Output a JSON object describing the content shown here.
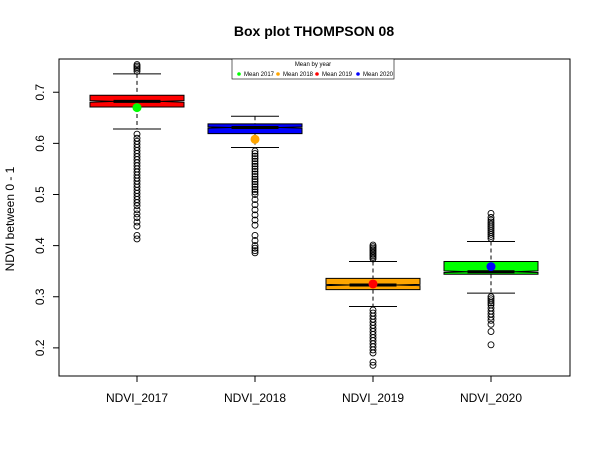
{
  "chart_data": {
    "type": "box",
    "title": "Box plot THOMPSON 08",
    "xlabel": "",
    "ylabel": "NDVI between 0 - 1",
    "ylim": [
      0.145,
      0.765
    ],
    "yticks": [
      0.2,
      0.3,
      0.4,
      0.5,
      0.6,
      0.7
    ],
    "grid": false,
    "legend": {
      "title": "Mean by year",
      "placement": "top-center",
      "entries": [
        {
          "label": "Mean 2017",
          "color": "#00ff00"
        },
        {
          "label": "Mean 2018",
          "color": "#ffa500"
        },
        {
          "label": "Mean 2019",
          "color": "#ff0000"
        },
        {
          "label": "Mean 2020",
          "color": "#0000ff"
        }
      ]
    },
    "categories": [
      "NDVI_2017",
      "NDVI_2018",
      "NDVI_2019",
      "NDVI_2020"
    ],
    "boxes": [
      {
        "name": "NDVI_2017",
        "fill": "#ff0000",
        "whisker_low": 0.628,
        "q1": 0.671,
        "median": 0.682,
        "q3": 0.694,
        "whisker_high": 0.736,
        "notch": 0.0015,
        "mean": 0.67,
        "mean_color": "#00ff00",
        "outliers": [
          0.741,
          0.745,
          0.748,
          0.751,
          0.754,
          0.618,
          0.61,
          0.604,
          0.598,
          0.592,
          0.586,
          0.58,
          0.574,
          0.568,
          0.562,
          0.556,
          0.55,
          0.544,
          0.538,
          0.532,
          0.526,
          0.52,
          0.514,
          0.508,
          0.502,
          0.496,
          0.49,
          0.484,
          0.478,
          0.47,
          0.462,
          0.455,
          0.446,
          0.438,
          0.42,
          0.413
        ]
      },
      {
        "name": "NDVI_2018",
        "fill": "#0000ff",
        "whisker_low": 0.592,
        "q1": 0.619,
        "median": 0.631,
        "q3": 0.638,
        "whisker_high": 0.653,
        "notch": 0.0012,
        "mean": 0.608,
        "mean_color": "#ffa500",
        "outliers": [
          0.585,
          0.58,
          0.575,
          0.57,
          0.565,
          0.56,
          0.555,
          0.55,
          0.545,
          0.54,
          0.535,
          0.53,
          0.525,
          0.52,
          0.515,
          0.51,
          0.505,
          0.5,
          0.49,
          0.48,
          0.47,
          0.46,
          0.45,
          0.44,
          0.42,
          0.41,
          0.4,
          0.395,
          0.39,
          0.386
        ]
      },
      {
        "name": "NDVI_2019",
        "fill": "#ffa500",
        "whisker_low": 0.281,
        "q1": 0.314,
        "median": 0.323,
        "q3": 0.336,
        "whisker_high": 0.369,
        "notch": 0.0012,
        "mean": 0.325,
        "mean_color": "#ff0000",
        "outliers": [
          0.374,
          0.377,
          0.38,
          0.383,
          0.386,
          0.389,
          0.392,
          0.395,
          0.398,
          0.401,
          0.274,
          0.268,
          0.262,
          0.256,
          0.25,
          0.244,
          0.238,
          0.232,
          0.226,
          0.22,
          0.214,
          0.208,
          0.202,
          0.196,
          0.19,
          0.172,
          0.166
        ]
      },
      {
        "name": "NDVI_2020",
        "fill": "#00ff00",
        "whisker_low": 0.307,
        "q1": 0.344,
        "median": 0.349,
        "q3": 0.369,
        "whisker_high": 0.408,
        "notch": 0.0015,
        "mean": 0.359,
        "mean_color": "#0000ff",
        "outliers": [
          0.414,
          0.418,
          0.422,
          0.426,
          0.43,
          0.434,
          0.438,
          0.442,
          0.446,
          0.45,
          0.455,
          0.463,
          0.3,
          0.296,
          0.292,
          0.288,
          0.284,
          0.278,
          0.272,
          0.266,
          0.26,
          0.254,
          0.246,
          0.232,
          0.206
        ]
      }
    ]
  }
}
